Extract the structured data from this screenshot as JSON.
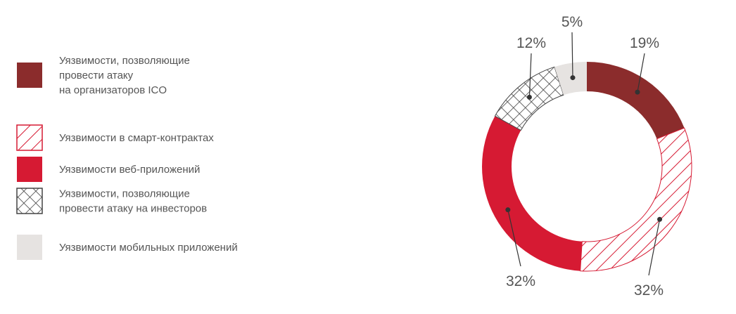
{
  "chart_data": {
    "type": "donut",
    "legend_position": "left",
    "series": [
      {
        "name": "Уязвимости, позволяющие провести атаку на организаторов ICO",
        "name_lines": [
          "Уязвимости, позволяющие",
          "провести атаку",
          "на организаторов ICO"
        ],
        "value": 19,
        "label": "19%",
        "color": "#8b2c2c",
        "pattern": "solid"
      },
      {
        "name": "Уязвимости в смарт-контрактах",
        "name_lines": [
          "Уязвимости в смарт-контрактах"
        ],
        "value": 32,
        "label": "32%",
        "color": "#d61a33",
        "pattern": "diagonal-hatch"
      },
      {
        "name": "Уязвимости веб-приложений",
        "name_lines": [
          "Уязвимости веб-приложений"
        ],
        "value": 32,
        "label": "32%",
        "color": "#d61a33",
        "pattern": "solid"
      },
      {
        "name": "Уязвимости, позволяющие провести атаку на инвесторов",
        "name_lines": [
          "Уязвимости, позволяющие",
          "провести атаку на инвесторов"
        ],
        "value": 12,
        "label": "12%",
        "color": "#444444",
        "pattern": "crosshatch"
      },
      {
        "name": "Уязвимости мобильных приложений",
        "name_lines": [
          "Уязвимости мобильных приложений"
        ],
        "value": 5,
        "label": "5%",
        "color": "#e6e3e1",
        "pattern": "solid"
      }
    ]
  }
}
